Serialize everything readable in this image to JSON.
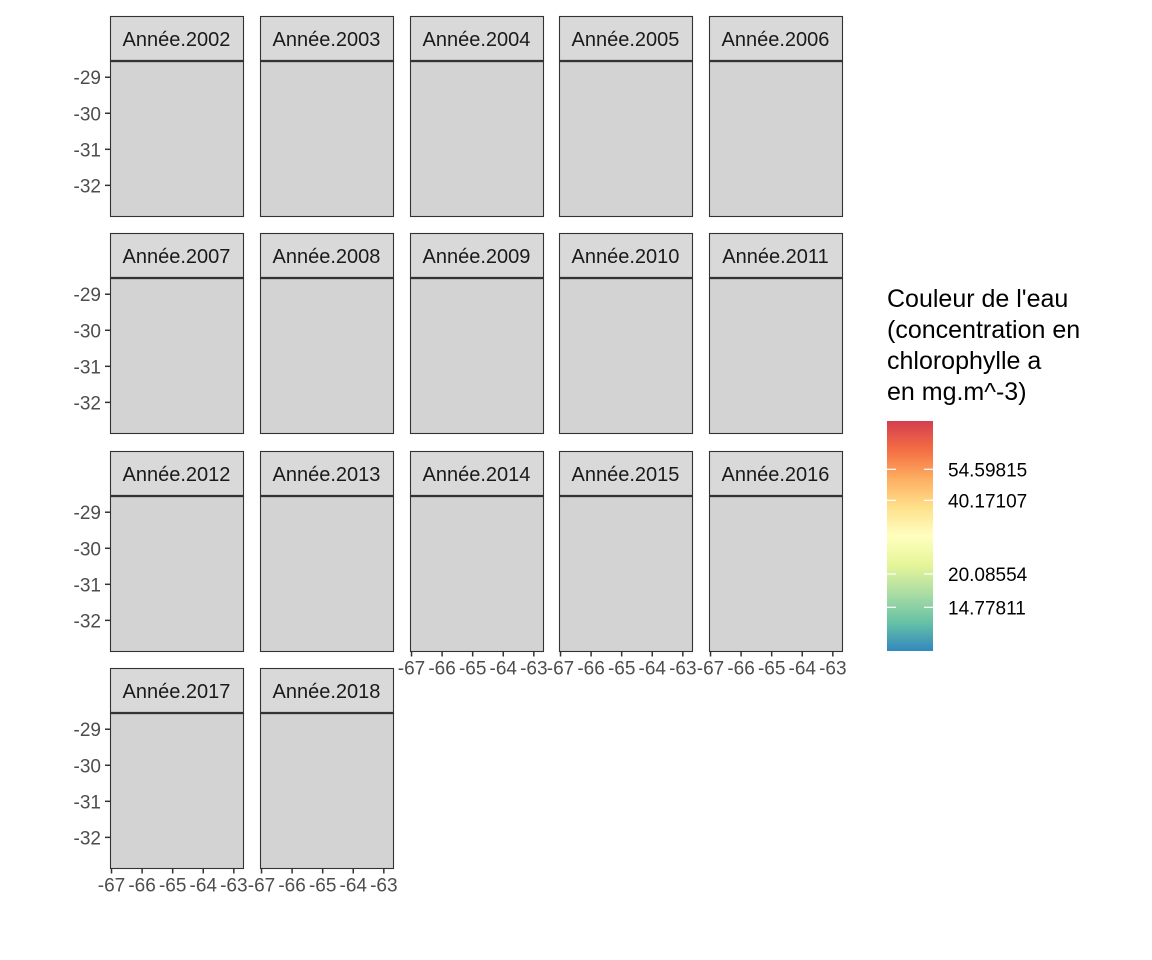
{
  "chart_data": {
    "type": "heatmap",
    "facet_labels": [
      "Année.2002",
      "Année.2003",
      "Année.2004",
      "Année.2005",
      "Année.2006",
      "Année.2007",
      "Année.2008",
      "Année.2009",
      "Année.2010",
      "Année.2011",
      "Année.2012",
      "Année.2013",
      "Année.2014",
      "Année.2015",
      "Année.2016",
      "Année.2017",
      "Année.2018"
    ],
    "facet_ncol": 5,
    "x_ticks": [
      -67,
      -66,
      -65,
      -64,
      -63
    ],
    "x_tick_labels": [
      "-67",
      "-66",
      "-65",
      "-64",
      "-63"
    ],
    "y_ticks": [
      -29,
      -30,
      -31,
      -32
    ],
    "y_tick_labels": [
      "-29",
      "-30",
      "-31",
      "-32"
    ],
    "xlim": [
      -67.05,
      -62.7
    ],
    "ylim": [
      -32.85,
      -28.55
    ],
    "panel_fill": "#d3d3d3",
    "reference_line_y": -28.55,
    "legend": {
      "title_lines": [
        "Couleur de l'eau",
        "(concentration en",
        "chlorophylle a",
        "en mg.m^-3)"
      ],
      "labels": [
        "54.59815",
        "40.17107",
        "20.08554",
        "14.77811"
      ],
      "label_fractions": [
        0.79,
        0.655,
        0.335,
        0.19
      ],
      "colors": [
        "#3288bd",
        "#66c2a5",
        "#abdda4",
        "#e6f598",
        "#ffffbf",
        "#fee08b",
        "#fdae61",
        "#f46d43",
        "#d53e4f"
      ]
    }
  }
}
